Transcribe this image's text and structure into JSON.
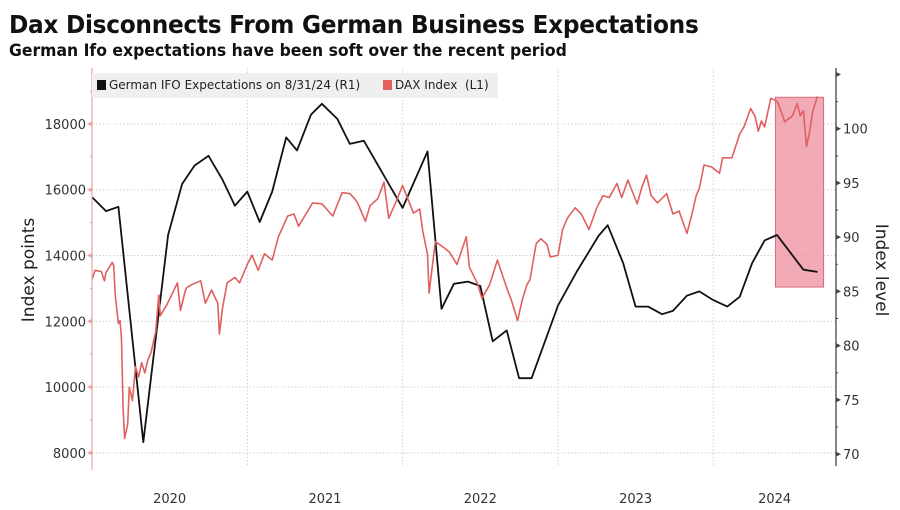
{
  "title": "Dax Disconnects From German Business Expectations",
  "subtitle": "German Ifo expectations have been soft over the recent period",
  "colors": {
    "dax": "#e06060",
    "ifo": "#111111",
    "highlight_fill": "#ee8f9d",
    "highlight_stroke": "#d76b7c",
    "left_axis": "#e9a3a3",
    "right_axis": "#444444",
    "grid": "#cfcfcf",
    "legend_bg": "#efefef"
  },
  "chart_data": {
    "type": "line",
    "title": "Dax Disconnects From German Business Expectations",
    "subtitle": "German Ifo expectations have been soft over the recent period",
    "xlabel": "",
    "x_range": [
      2020.0,
      2024.79
    ],
    "x_ticks": [
      {
        "label": "2020",
        "year": 2020
      },
      {
        "label": "2021",
        "year": 2021
      },
      {
        "label": "2022",
        "year": 2022
      },
      {
        "label": "2023",
        "year": 2023
      },
      {
        "label": "2024",
        "year": 2024
      }
    ],
    "y_left": {
      "label": "Index points",
      "range": [
        7600,
        19700
      ],
      "ticks": [
        8000,
        10000,
        12000,
        14000,
        16000,
        18000
      ],
      "minor_step": 1000
    },
    "y_right": {
      "label": "Index level",
      "range": [
        68.9,
        105.6
      ],
      "ticks": [
        70,
        75,
        80,
        85,
        90,
        95,
        100
      ],
      "minor_step": 2.5
    },
    "grid": true,
    "legend": {
      "placement": "top-left",
      "entries": [
        {
          "label": "German IFO Expectations on 8/31/24 (R1)",
          "series": "ifo"
        },
        {
          "label": "DAX Index  (L1)",
          "series": "dax"
        }
      ]
    },
    "highlight": {
      "x_from": 2024.4,
      "x_to": 2024.71,
      "y_right_from": 85.4,
      "y_right_to": 102.9
    },
    "series": [
      {
        "name": "German IFO Expectations on 8/31/24 (R1)",
        "key": "ifo",
        "axis": "right",
        "points": [
          [
            2020.0,
            93.7
          ],
          [
            2020.09,
            92.4
          ],
          [
            2020.17,
            92.8
          ],
          [
            2020.33,
            71.1
          ],
          [
            2020.49,
            90.2
          ],
          [
            2020.58,
            94.9
          ],
          [
            2020.66,
            96.6
          ],
          [
            2020.75,
            97.5
          ],
          [
            2020.84,
            95.3
          ],
          [
            2020.92,
            92.9
          ],
          [
            2021.0,
            94.2
          ],
          [
            2021.08,
            91.4
          ],
          [
            2021.16,
            94.2
          ],
          [
            2021.25,
            99.2
          ],
          [
            2021.32,
            98.0
          ],
          [
            2021.41,
            101.3
          ],
          [
            2021.48,
            102.3
          ],
          [
            2021.58,
            100.9
          ],
          [
            2021.66,
            98.6
          ],
          [
            2021.75,
            98.9
          ],
          [
            2022.0,
            92.7
          ],
          [
            2022.16,
            97.9
          ],
          [
            2022.25,
            83.4
          ],
          [
            2022.33,
            85.7
          ],
          [
            2022.42,
            85.9
          ],
          [
            2022.5,
            85.5
          ],
          [
            2022.58,
            80.4
          ],
          [
            2022.67,
            81.4
          ],
          [
            2022.75,
            77.0
          ],
          [
            2022.83,
            77.0
          ],
          [
            2023.0,
            83.7
          ],
          [
            2023.12,
            86.8
          ],
          [
            2023.26,
            90.1
          ],
          [
            2023.32,
            91.1
          ],
          [
            2023.42,
            87.6
          ],
          [
            2023.5,
            83.6
          ],
          [
            2023.58,
            83.6
          ],
          [
            2023.67,
            82.9
          ],
          [
            2023.74,
            83.2
          ],
          [
            2023.83,
            84.6
          ],
          [
            2023.91,
            85.0
          ],
          [
            2024.0,
            84.2
          ],
          [
            2024.09,
            83.6
          ],
          [
            2024.17,
            84.5
          ],
          [
            2024.25,
            87.6
          ],
          [
            2024.33,
            89.7
          ],
          [
            2024.41,
            90.2
          ],
          [
            2024.49,
            88.7
          ],
          [
            2024.58,
            87.0
          ],
          [
            2024.67,
            86.8
          ]
        ]
      },
      {
        "name": "DAX Index  (L1)",
        "key": "dax",
        "axis": "left",
        "points": [
          [
            2020.0,
            13270
          ],
          [
            2020.02,
            13550
          ],
          [
            2020.06,
            13510
          ],
          [
            2020.08,
            13230
          ],
          [
            2020.09,
            13480
          ],
          [
            2020.13,
            13790
          ],
          [
            2020.14,
            13700
          ],
          [
            2020.15,
            12770
          ],
          [
            2020.17,
            11930
          ],
          [
            2020.18,
            12020
          ],
          [
            2020.19,
            11460
          ],
          [
            2020.2,
            9370
          ],
          [
            2020.21,
            8440
          ],
          [
            2020.23,
            8870
          ],
          [
            2020.24,
            9990
          ],
          [
            2020.26,
            9590
          ],
          [
            2020.28,
            10620
          ],
          [
            2020.3,
            10310
          ],
          [
            2020.32,
            10740
          ],
          [
            2020.34,
            10430
          ],
          [
            2020.36,
            10830
          ],
          [
            2020.38,
            11050
          ],
          [
            2020.41,
            11680
          ],
          [
            2020.43,
            12800
          ],
          [
            2020.44,
            12170
          ],
          [
            2020.48,
            12490
          ],
          [
            2020.51,
            12770
          ],
          [
            2020.55,
            13170
          ],
          [
            2020.57,
            12330
          ],
          [
            2020.61,
            13020
          ],
          [
            2020.6,
            12920
          ],
          [
            2020.64,
            13110
          ],
          [
            2020.7,
            13230
          ],
          [
            2020.73,
            12550
          ],
          [
            2020.77,
            12950
          ],
          [
            2020.81,
            12550
          ],
          [
            2020.82,
            11610
          ],
          [
            2020.84,
            12390
          ],
          [
            2020.87,
            13170
          ],
          [
            2020.92,
            13330
          ],
          [
            2020.95,
            13170
          ],
          [
            2021.0,
            13730
          ],
          [
            2021.03,
            14010
          ],
          [
            2021.07,
            13550
          ],
          [
            2021.11,
            14050
          ],
          [
            2021.16,
            13860
          ],
          [
            2021.2,
            14570
          ],
          [
            2021.26,
            15200
          ],
          [
            2021.3,
            15260
          ],
          [
            2021.33,
            14890
          ],
          [
            2021.42,
            15600
          ],
          [
            2021.48,
            15570
          ],
          [
            2021.55,
            15200
          ],
          [
            2021.61,
            15910
          ],
          [
            2021.69,
            15730
          ],
          [
            2021.66,
            15880
          ],
          [
            2021.71,
            15600
          ],
          [
            2021.76,
            15040
          ],
          [
            2021.79,
            15510
          ],
          [
            2021.84,
            15730
          ],
          [
            2021.88,
            16230
          ],
          [
            2021.91,
            15130
          ],
          [
            2021.96,
            15660
          ],
          [
            2022.0,
            16130
          ],
          [
            2022.03,
            15760
          ],
          [
            2022.07,
            15290
          ],
          [
            2022.11,
            15410
          ],
          [
            2022.13,
            14730
          ],
          [
            2022.16,
            14040
          ],
          [
            2022.17,
            12860
          ],
          [
            2022.21,
            14420
          ],
          [
            2022.26,
            14260
          ],
          [
            2022.3,
            14110
          ],
          [
            2022.35,
            13730
          ],
          [
            2022.41,
            14570
          ],
          [
            2022.43,
            13640
          ],
          [
            2022.48,
            13170
          ],
          [
            2022.51,
            12700
          ],
          [
            2022.56,
            13110
          ],
          [
            2022.61,
            13860
          ],
          [
            2022.67,
            13020
          ],
          [
            2022.7,
            12640
          ],
          [
            2022.74,
            12020
          ],
          [
            2022.77,
            12640
          ],
          [
            2022.8,
            13110
          ],
          [
            2022.82,
            13270
          ],
          [
            2022.86,
            14360
          ],
          [
            2022.89,
            14510
          ],
          [
            2022.93,
            14330
          ],
          [
            2022.95,
            13950
          ],
          [
            2023.0,
            14010
          ],
          [
            2023.03,
            14790
          ],
          [
            2023.06,
            15130
          ],
          [
            2023.11,
            15450
          ],
          [
            2023.15,
            15260
          ],
          [
            2023.2,
            14790
          ],
          [
            2023.25,
            15450
          ],
          [
            2023.29,
            15820
          ],
          [
            2023.33,
            15760
          ],
          [
            2023.38,
            16190
          ],
          [
            2023.41,
            15760
          ],
          [
            2023.45,
            16290
          ],
          [
            2023.51,
            15570
          ],
          [
            2023.54,
            16070
          ],
          [
            2023.57,
            16440
          ],
          [
            2023.6,
            15820
          ],
          [
            2023.64,
            15600
          ],
          [
            2023.7,
            15880
          ],
          [
            2023.74,
            15260
          ],
          [
            2023.78,
            15350
          ],
          [
            2023.83,
            14670
          ],
          [
            2023.86,
            15200
          ],
          [
            2023.89,
            15820
          ],
          [
            2023.91,
            16040
          ],
          [
            2023.94,
            16750
          ],
          [
            2023.99,
            16690
          ],
          [
            2024.04,
            16500
          ],
          [
            2024.06,
            16970
          ],
          [
            2024.12,
            16970
          ],
          [
            2024.17,
            17690
          ],
          [
            2024.2,
            17940
          ],
          [
            2024.24,
            18470
          ],
          [
            2024.27,
            18220
          ],
          [
            2024.29,
            17780
          ],
          [
            2024.31,
            18090
          ],
          [
            2024.33,
            17910
          ],
          [
            2024.37,
            18780
          ],
          [
            2024.41,
            18690
          ],
          [
            2024.43,
            18470
          ],
          [
            2024.46,
            18060
          ],
          [
            2024.51,
            18250
          ],
          [
            2024.54,
            18620
          ],
          [
            2024.56,
            18250
          ],
          [
            2024.58,
            18400
          ],
          [
            2024.6,
            17310
          ],
          [
            2024.62,
            17750
          ],
          [
            2024.64,
            18370
          ],
          [
            2024.67,
            18840
          ]
        ]
      }
    ]
  }
}
